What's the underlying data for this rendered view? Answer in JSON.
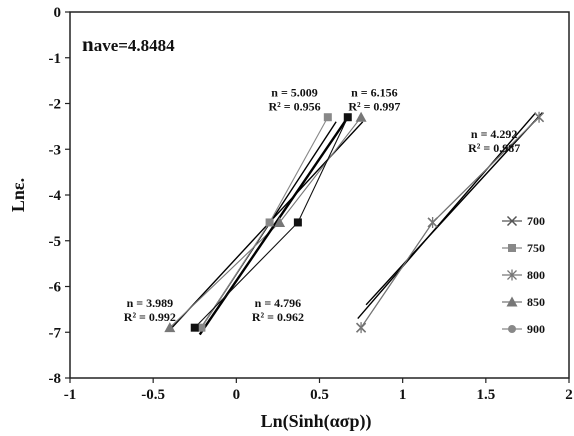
{
  "chart_data": {
    "type": "scatter",
    "title": "",
    "xlabel": "Ln(Sinh(ασp))",
    "ylabel": "Lnε.",
    "xlim": [
      -1,
      2
    ],
    "ylim": [
      -8,
      0
    ],
    "xticks": [
      -1,
      -0.5,
      0,
      0.5,
      1,
      1.5,
      2
    ],
    "yticks": [
      0,
      -1,
      -2,
      -3,
      -4,
      -5,
      -6,
      -7,
      -8
    ],
    "xtick_labels": [
      "-1",
      "-0.5",
      "0",
      "0.5",
      "1",
      "1.5",
      "2"
    ],
    "ytick_labels": [
      "0",
      "-1",
      "-2",
      "-3",
      "-4",
      "-5",
      "-6",
      "-7",
      "-8"
    ],
    "grid": false,
    "legend_position": "right",
    "nave_prefix": "n",
    "nave_suffix": "ave=4.8484",
    "series": [
      {
        "name": "700",
        "marker": "x",
        "color": "#555555",
        "x": [
          0.75,
          1.18,
          1.82
        ],
        "y": [
          -6.9,
          -4.6,
          -2.3
        ],
        "fit": [
          [
            0.73,
            -6.7
          ],
          [
            1.8,
            -2.2
          ]
        ]
      },
      {
        "name": "750",
        "marker": "square",
        "color": "#888888",
        "x": [
          -0.21,
          0.2,
          0.55
        ],
        "y": [
          -6.9,
          -4.6,
          -2.3
        ],
        "fit": [
          [
            -0.22,
            -6.95
          ],
          [
            0.6,
            -2.4
          ]
        ]
      },
      {
        "name": "800",
        "marker": "asterisk",
        "color": "#777777",
        "x": [
          0.75,
          1.18,
          1.82
        ],
        "y": [
          -6.9,
          -4.6,
          -2.3
        ],
        "fit": [
          [
            0.78,
            -6.4
          ],
          [
            1.84,
            -2.2
          ]
        ]
      },
      {
        "name": "850",
        "marker": "triangle",
        "color": "#777777",
        "x": [
          -0.4,
          0.26,
          0.75
        ],
        "y": [
          -6.9,
          -4.6,
          -2.3
        ],
        "fit": [
          [
            -0.4,
            -6.95
          ],
          [
            0.76,
            -2.4
          ]
        ]
      },
      {
        "name": "900",
        "marker": "circle",
        "color": "#888888",
        "x": [],
        "y": [],
        "fit": []
      }
    ],
    "extra_series": [
      {
        "marker": "square",
        "color": "#111111",
        "x": [
          -0.25,
          0.37,
          0.67
        ],
        "y": [
          -6.9,
          -4.6,
          -2.3
        ],
        "fit": [
          [
            -0.22,
            -7.05
          ],
          [
            0.68,
            -2.25
          ]
        ]
      }
    ],
    "annotations": [
      {
        "n": "n = 5.009",
        "r2": "R² = 0.956",
        "x": 0.35,
        "y": -1.85
      },
      {
        "n": "n = 6.156",
        "r2": "R² = 0.997",
        "x": 0.83,
        "y": -1.85
      },
      {
        "n": "n = 4.292",
        "r2": "R² = 0.987",
        "x": 1.55,
        "y": -2.75
      },
      {
        "n": "n = 3.989",
        "r2": "R² = 0.992",
        "x": -0.52,
        "y": -6.45
      },
      {
        "n": "n = 4.796",
        "r2": "R² = 0.962",
        "x": 0.25,
        "y": -6.45
      }
    ]
  }
}
